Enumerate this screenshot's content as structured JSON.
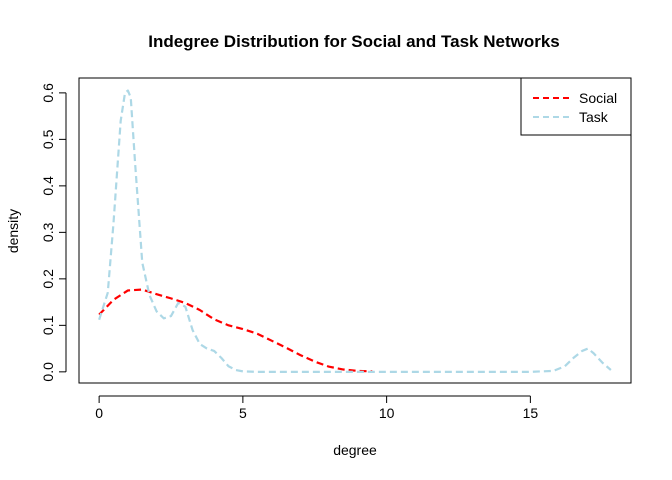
{
  "chart_data": {
    "type": "line",
    "title": "Indegree Distribution for Social and Task Networks",
    "xlabel": "degree",
    "ylabel": "density",
    "xlim": [
      -0.7,
      18.5
    ],
    "ylim": [
      -0.024,
      0.632
    ],
    "x_ticks": [
      0,
      5,
      10,
      15
    ],
    "y_ticks": [
      0.0,
      0.1,
      0.2,
      0.3,
      0.4,
      0.5,
      0.6
    ],
    "x_tick_labels": [
      "0",
      "5",
      "10",
      "15"
    ],
    "y_tick_labels": [
      "0.0",
      "0.1",
      "0.2",
      "0.3",
      "0.4",
      "0.5",
      "0.6"
    ],
    "grid": false,
    "legend_position": "top-right",
    "series": [
      {
        "name": "Social",
        "color": "#ff0000",
        "dash": "dashed",
        "x": [
          0,
          0.5,
          1,
          1.5,
          2,
          2.5,
          3,
          3.5,
          4,
          4.5,
          5,
          5.5,
          6,
          6.5,
          7,
          7.5,
          8,
          8.5,
          9,
          9.5
        ],
        "y": [
          0.123,
          0.155,
          0.175,
          0.177,
          0.167,
          0.158,
          0.148,
          0.133,
          0.113,
          0.1,
          0.092,
          0.082,
          0.067,
          0.052,
          0.036,
          0.022,
          0.011,
          0.005,
          0.002,
          0.001
        ]
      },
      {
        "name": "Task",
        "color": "#add8e6",
        "dash": "dashed",
        "x": [
          0,
          0.3,
          0.5,
          0.75,
          0.9,
          1.0,
          1.1,
          1.25,
          1.5,
          1.75,
          2.0,
          2.25,
          2.5,
          2.75,
          3.0,
          3.25,
          3.5,
          3.75,
          4.0,
          4.25,
          4.5,
          4.75,
          5.0,
          5.5,
          6,
          7,
          8,
          9,
          10,
          11,
          12,
          13,
          14,
          15,
          15.8,
          16.2,
          16.5,
          16.8,
          17.0,
          17.2,
          17.5,
          17.8
        ],
        "y": [
          0.112,
          0.17,
          0.32,
          0.54,
          0.6,
          0.605,
          0.59,
          0.45,
          0.235,
          0.165,
          0.13,
          0.115,
          0.12,
          0.148,
          0.14,
          0.09,
          0.06,
          0.05,
          0.045,
          0.03,
          0.012,
          0.004,
          0.001,
          0,
          0,
          0,
          0,
          0,
          0,
          0,
          0,
          0,
          0,
          0,
          0.002,
          0.012,
          0.03,
          0.045,
          0.05,
          0.04,
          0.02,
          0.004
        ]
      }
    ]
  }
}
